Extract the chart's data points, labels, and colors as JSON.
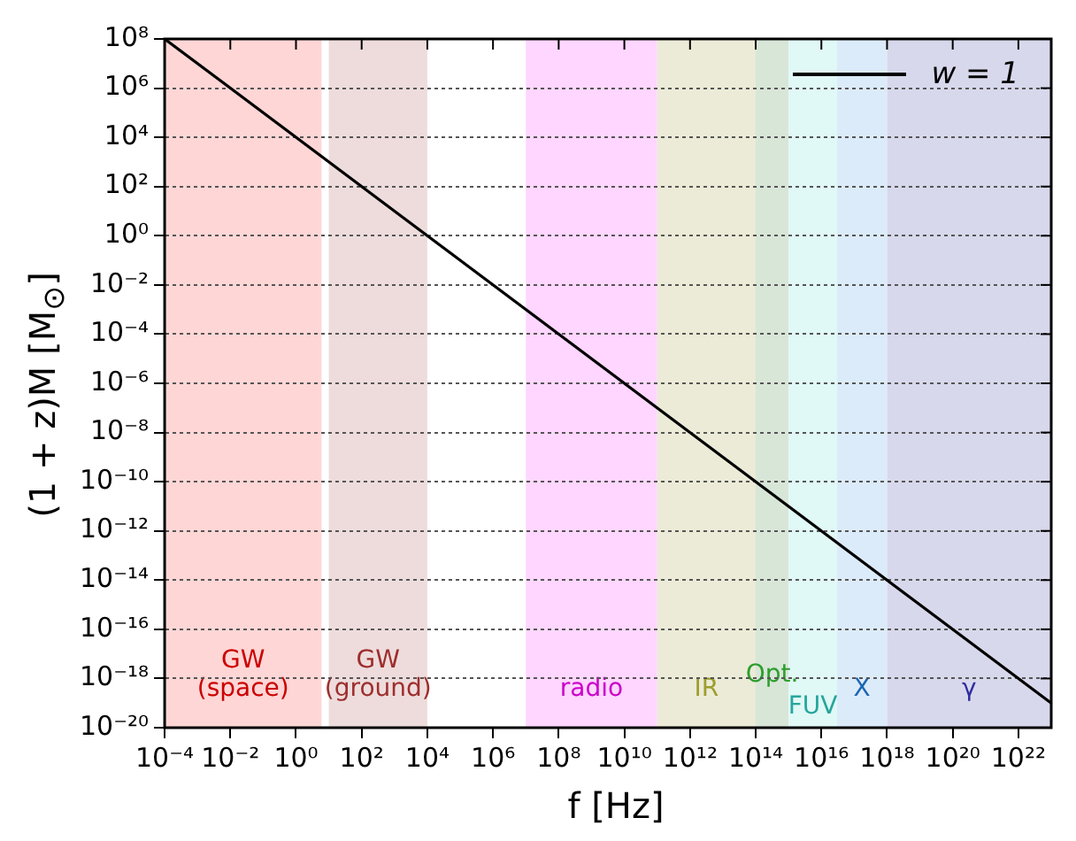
{
  "chart_data": {
    "type": "line",
    "xlabel": "f [Hz]",
    "ylabel": "(1 + z)M [M$_{⊙}$]",
    "series": [
      {
        "name": "w = 1",
        "color": "#000000",
        "x": [
          0.0001,
          1e+23
        ],
        "values": [
          100000000.0,
          1e-19
        ]
      }
    ],
    "log": "xy",
    "xlim": [
      0.0001,
      1e+23
    ],
    "ylim": [
      1e-20,
      100000000.0
    ],
    "xticks": [
      {
        "value": 0.0001,
        "label": "10⁻⁴"
      },
      {
        "value": 0.01,
        "label": "10⁻²"
      },
      {
        "value": 1,
        "label": "10⁰"
      },
      {
        "value": 100.0,
        "label": "10²"
      },
      {
        "value": 10000.0,
        "label": "10⁴"
      },
      {
        "value": 1000000.0,
        "label": "10⁶"
      },
      {
        "value": 100000000.0,
        "label": "10⁸"
      },
      {
        "value": 10000000000.0,
        "label": "10¹⁰"
      },
      {
        "value": 1000000000000.0,
        "label": "10¹²"
      },
      {
        "value": 100000000000000.0,
        "label": "10¹⁴"
      },
      {
        "value": 1e+16,
        "label": "10¹⁶"
      },
      {
        "value": 1e+18,
        "label": "10¹⁸"
      },
      {
        "value": 1e+20,
        "label": "10²⁰"
      },
      {
        "value": 1e+22,
        "label": "10²²"
      }
    ],
    "yticks": [
      {
        "value": 1e-20,
        "label": "10⁻²⁰"
      },
      {
        "value": 1e-18,
        "label": "10⁻¹⁸"
      },
      {
        "value": 1e-16,
        "label": "10⁻¹⁶"
      },
      {
        "value": 1e-14,
        "label": "10⁻¹⁴"
      },
      {
        "value": 1e-12,
        "label": "10⁻¹²"
      },
      {
        "value": 1e-10,
        "label": "10⁻¹⁰"
      },
      {
        "value": 1e-08,
        "label": "10⁻⁸"
      },
      {
        "value": 1e-06,
        "label": "10⁻⁶"
      },
      {
        "value": 0.0001,
        "label": "10⁻⁴"
      },
      {
        "value": 0.01,
        "label": "10⁻²"
      },
      {
        "value": 1,
        "label": "10⁰"
      },
      {
        "value": 100.0,
        "label": "10²"
      },
      {
        "value": 10000.0,
        "label": "10⁴"
      },
      {
        "value": 1000000.0,
        "label": "10⁶"
      },
      {
        "value": 100000000.0,
        "label": "10⁸"
      }
    ],
    "bands": [
      {
        "axis": "x",
        "from": 0.0001,
        "to": 6,
        "label": "GW\n(space)",
        "color": "#ffd6d6"
      },
      {
        "axis": "x",
        "from": 10,
        "to": 10000.0,
        "label": "GW\n(ground)",
        "color": "#eedcdc"
      },
      {
        "axis": "x",
        "from": 10000000.0,
        "to": 100000000000.0,
        "label": "radio",
        "color": "#ffd6ff"
      },
      {
        "axis": "x",
        "from": 100000000000.0,
        "to": 100000000000000.0,
        "label": "IR",
        "color": "#ebebd7"
      },
      {
        "axis": "x",
        "from": 100000000000000.0,
        "to": 1000000000000000.0,
        "label": "Opt.",
        "color": "#d8e6d8"
      },
      {
        "axis": "x",
        "from": 1000000000000000.0,
        "to": 3e+16,
        "label": "FUV",
        "color": "#e0f8f6"
      },
      {
        "axis": "x",
        "from": 3e+16,
        "to": 1e+18,
        "label": "X",
        "color": "#dcebfa"
      },
      {
        "axis": "x",
        "from": 1e+18,
        "to": 1e+23,
        "label": "γ",
        "color": "#d8d8ec"
      }
    ],
    "grid": "y",
    "legend": "top right",
    "marker": "none",
    "line_style": "solid"
  }
}
